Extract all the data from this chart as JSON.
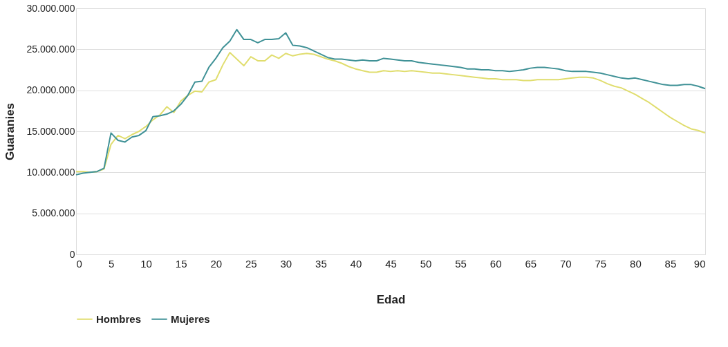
{
  "chart_data": {
    "type": "line",
    "xlabel": "Edad",
    "ylabel": "Guaranies",
    "x": [
      0,
      1,
      2,
      3,
      4,
      5,
      6,
      7,
      8,
      9,
      10,
      11,
      12,
      13,
      14,
      15,
      16,
      17,
      18,
      19,
      20,
      21,
      22,
      23,
      24,
      25,
      26,
      27,
      28,
      29,
      30,
      31,
      32,
      33,
      34,
      35,
      36,
      37,
      38,
      39,
      40,
      41,
      42,
      43,
      44,
      45,
      46,
      47,
      48,
      49,
      50,
      51,
      52,
      53,
      54,
      55,
      56,
      57,
      58,
      59,
      60,
      61,
      62,
      63,
      64,
      65,
      66,
      67,
      68,
      69,
      70,
      71,
      72,
      73,
      74,
      75,
      76,
      77,
      78,
      79,
      80,
      81,
      82,
      83,
      84,
      85,
      86,
      87,
      88,
      89,
      90
    ],
    "series": [
      {
        "name": "Hombres",
        "color": "#e0dd6e",
        "values": [
          10100000,
          10100000,
          10000000,
          10100000,
          10400000,
          13400000,
          14500000,
          14100000,
          14600000,
          15000000,
          15600000,
          16400000,
          17000000,
          18000000,
          17300000,
          18700000,
          19400000,
          19900000,
          19800000,
          21000000,
          21300000,
          23100000,
          24600000,
          23800000,
          23000000,
          24100000,
          23600000,
          23600000,
          24300000,
          23900000,
          24500000,
          24200000,
          24400000,
          24500000,
          24400000,
          24100000,
          23800000,
          23600000,
          23300000,
          22900000,
          22600000,
          22400000,
          22200000,
          22200000,
          22400000,
          22300000,
          22400000,
          22300000,
          22400000,
          22300000,
          22200000,
          22100000,
          22100000,
          22000000,
          21900000,
          21800000,
          21700000,
          21600000,
          21500000,
          21400000,
          21400000,
          21300000,
          21300000,
          21300000,
          21200000,
          21200000,
          21300000,
          21300000,
          21300000,
          21300000,
          21400000,
          21500000,
          21600000,
          21600000,
          21500000,
          21200000,
          20800000,
          20500000,
          20300000,
          19900000,
          19500000,
          19000000,
          18500000,
          17900000,
          17300000,
          16700000,
          16200000,
          15700000,
          15300000,
          15100000,
          14800000
        ]
      },
      {
        "name": "Mujeres",
        "color": "#3f9196",
        "values": [
          9700000,
          9900000,
          10000000,
          10100000,
          10500000,
          14800000,
          13900000,
          13700000,
          14300000,
          14500000,
          15100000,
          16800000,
          16900000,
          17100000,
          17500000,
          18300000,
          19400000,
          21000000,
          21100000,
          22800000,
          23900000,
          25200000,
          26000000,
          27400000,
          26200000,
          26200000,
          25800000,
          26200000,
          26200000,
          26300000,
          27000000,
          25500000,
          25400000,
          25200000,
          24800000,
          24400000,
          24000000,
          23800000,
          23800000,
          23700000,
          23600000,
          23700000,
          23600000,
          23600000,
          23900000,
          23800000,
          23700000,
          23600000,
          23600000,
          23400000,
          23300000,
          23200000,
          23100000,
          23000000,
          22900000,
          22800000,
          22600000,
          22600000,
          22500000,
          22500000,
          22400000,
          22400000,
          22300000,
          22400000,
          22500000,
          22700000,
          22800000,
          22800000,
          22700000,
          22600000,
          22400000,
          22300000,
          22300000,
          22300000,
          22200000,
          22100000,
          21900000,
          21700000,
          21500000,
          21400000,
          21500000,
          21300000,
          21100000,
          20900000,
          20700000,
          20600000,
          20600000,
          20700000,
          20700000,
          20500000,
          20200000
        ]
      }
    ],
    "xlim": [
      0,
      90
    ],
    "xticks": [
      0,
      5,
      10,
      15,
      20,
      25,
      30,
      35,
      40,
      45,
      50,
      55,
      60,
      65,
      70,
      75,
      80,
      85,
      90
    ],
    "ylim": [
      0,
      30000000
    ],
    "yticks": [
      0,
      {
        "value": 5000000,
        "label": "5.000.000"
      },
      {
        "value": 10000000,
        "label": "10.000.000"
      },
      {
        "value": 15000000,
        "label": "15.000.000"
      },
      {
        "value": 20000000,
        "label": "20.000.000"
      },
      {
        "value": 25000000,
        "label": "25.000.000"
      },
      {
        "value": 30000000,
        "label": "30.000.000"
      }
    ],
    "grid": "y",
    "legend": "bottom",
    "marker": "none",
    "line_style": "solid"
  }
}
